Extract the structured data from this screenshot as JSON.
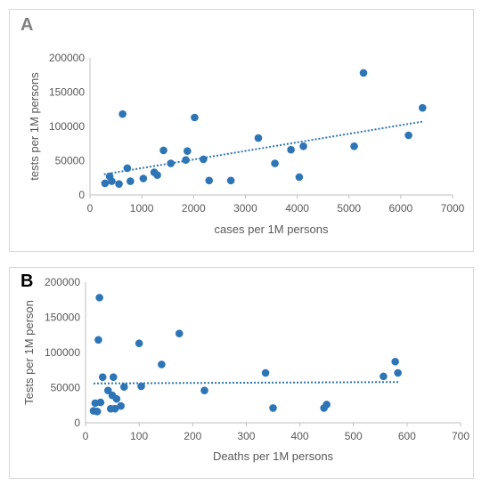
{
  "chart_data": [
    {
      "type": "scatter",
      "panel_label": "A",
      "xlabel": "cases per 1M persons",
      "ylabel": "tests per 1M persons",
      "xlim": [
        0,
        7000
      ],
      "ylim": [
        0,
        200000
      ],
      "xticks": [
        0,
        1000,
        2000,
        3000,
        4000,
        5000,
        6000,
        7000
      ],
      "yticks": [
        0,
        50000,
        100000,
        150000,
        200000
      ],
      "trendline": {
        "type": "linear",
        "x": [
          270,
          6420
        ],
        "y": [
          30000,
          107000
        ]
      },
      "grid": false,
      "points": [
        {
          "x": 290,
          "y": 17000
        },
        {
          "x": 380,
          "y": 27000
        },
        {
          "x": 420,
          "y": 20000
        },
        {
          "x": 560,
          "y": 16000
        },
        {
          "x": 630,
          "y": 118000
        },
        {
          "x": 720,
          "y": 39000
        },
        {
          "x": 780,
          "y": 20000
        },
        {
          "x": 1030,
          "y": 24000
        },
        {
          "x": 1240,
          "y": 33000
        },
        {
          "x": 1300,
          "y": 29000
        },
        {
          "x": 1420,
          "y": 65000
        },
        {
          "x": 1560,
          "y": 46000
        },
        {
          "x": 1850,
          "y": 51000
        },
        {
          "x": 1880,
          "y": 64000
        },
        {
          "x": 2020,
          "y": 113000
        },
        {
          "x": 2190,
          "y": 52000
        },
        {
          "x": 2300,
          "y": 21000
        },
        {
          "x": 2720,
          "y": 21000
        },
        {
          "x": 3250,
          "y": 83000
        },
        {
          "x": 3570,
          "y": 46000
        },
        {
          "x": 3880,
          "y": 66000
        },
        {
          "x": 4040,
          "y": 26000
        },
        {
          "x": 4120,
          "y": 71000
        },
        {
          "x": 5100,
          "y": 71000
        },
        {
          "x": 5280,
          "y": 178000
        },
        {
          "x": 6150,
          "y": 87000
        },
        {
          "x": 6420,
          "y": 127000
        }
      ]
    },
    {
      "type": "scatter",
      "panel_label": "B",
      "xlabel": "Deaths per 1M persons",
      "ylabel": "Tests per 1M person",
      "xlim": [
        0,
        700
      ],
      "ylim": [
        0,
        200000
      ],
      "xticks": [
        0,
        100,
        200,
        300,
        400,
        500,
        600,
        700
      ],
      "yticks": [
        0,
        50000,
        100000,
        150000,
        200000
      ],
      "trendline": {
        "type": "linear",
        "x": [
          15,
          585
        ],
        "y": [
          56000,
          58000
        ]
      },
      "grid": false,
      "points": [
        {
          "x": 15,
          "y": 17000
        },
        {
          "x": 18,
          "y": 28000
        },
        {
          "x": 22,
          "y": 16000
        },
        {
          "x": 24,
          "y": 118000
        },
        {
          "x": 26,
          "y": 178000
        },
        {
          "x": 28,
          "y": 29000
        },
        {
          "x": 32,
          "y": 65000
        },
        {
          "x": 42,
          "y": 46000
        },
        {
          "x": 47,
          "y": 20000
        },
        {
          "x": 50,
          "y": 39000
        },
        {
          "x": 52,
          "y": 65000
        },
        {
          "x": 55,
          "y": 20000
        },
        {
          "x": 58,
          "y": 34000
        },
        {
          "x": 66,
          "y": 24000
        },
        {
          "x": 72,
          "y": 51000
        },
        {
          "x": 100,
          "y": 113000
        },
        {
          "x": 104,
          "y": 52000
        },
        {
          "x": 142,
          "y": 83000
        },
        {
          "x": 175,
          "y": 127000
        },
        {
          "x": 222,
          "y": 46000
        },
        {
          "x": 336,
          "y": 71000
        },
        {
          "x": 350,
          "y": 21000
        },
        {
          "x": 445,
          "y": 21000
        },
        {
          "x": 450,
          "y": 26000
        },
        {
          "x": 556,
          "y": 66000
        },
        {
          "x": 578,
          "y": 87000
        },
        {
          "x": 583,
          "y": 71000
        }
      ]
    }
  ],
  "colors": {
    "marker": "#2e75b6",
    "trendline": "#2e75b6",
    "axis": "#bfbfbf",
    "text": "#595959"
  }
}
